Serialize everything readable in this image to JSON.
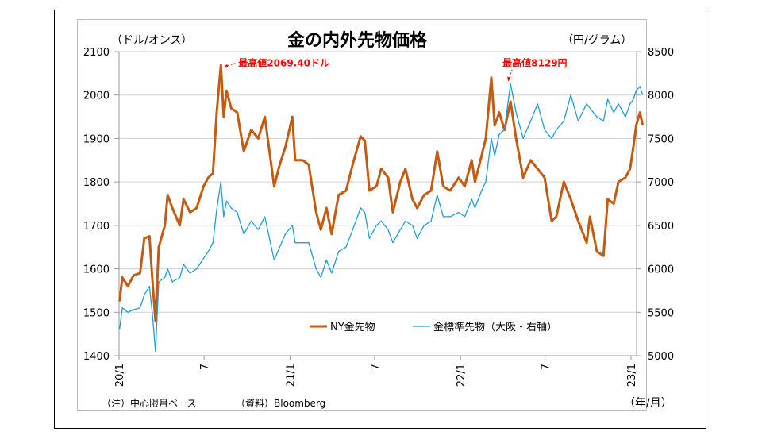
{
  "chart_data": {
    "type": "line",
    "title": "金の内外先物価格",
    "ylabel_left": "（ドル/オンス）",
    "ylabel_right": "（円/グラム）",
    "xlabel": "（年/月）",
    "ylim_left": [
      1400,
      2100
    ],
    "ylim_right": [
      5000,
      8500
    ],
    "yticks_left": [
      "2100",
      "2000",
      "1900",
      "1800",
      "1700",
      "1600",
      "1500",
      "1400"
    ],
    "yticks_right": [
      "8500",
      "8000",
      "7500",
      "7000",
      "6500",
      "6000",
      "5500",
      "5000"
    ],
    "xticks": [
      {
        "date": "2020-01-01",
        "label": "20/1"
      },
      {
        "date": "2020-07-01",
        "label": "7"
      },
      {
        "date": "2021-01-01",
        "label": "21/1"
      },
      {
        "date": "2021-07-01",
        "label": "7"
      },
      {
        "date": "2022-01-01",
        "label": "22/1"
      },
      {
        "date": "2022-07-01",
        "label": "7"
      },
      {
        "date": "2023-01-01",
        "label": "23/1"
      }
    ],
    "grid": true,
    "legend_position": "bottom-center",
    "series": [
      {
        "name": "NY金先物",
        "axis": "left",
        "color": "#c55a11",
        "points": [
          [
            "2020-01-02",
            1525
          ],
          [
            "2020-01-08",
            1580
          ],
          [
            "2020-01-20",
            1560
          ],
          [
            "2020-02-01",
            1585
          ],
          [
            "2020-02-15",
            1590
          ],
          [
            "2020-02-24",
            1670
          ],
          [
            "2020-03-06",
            1675
          ],
          [
            "2020-03-12",
            1580
          ],
          [
            "2020-03-19",
            1480
          ],
          [
            "2020-03-26",
            1650
          ],
          [
            "2020-04-08",
            1700
          ],
          [
            "2020-04-14",
            1770
          ],
          [
            "2020-04-24",
            1740
          ],
          [
            "2020-05-10",
            1700
          ],
          [
            "2020-05-18",
            1760
          ],
          [
            "2020-06-01",
            1730
          ],
          [
            "2020-06-15",
            1740
          ],
          [
            "2020-06-30",
            1790
          ],
          [
            "2020-07-10",
            1810
          ],
          [
            "2020-07-20",
            1820
          ],
          [
            "2020-07-28",
            1960
          ],
          [
            "2020-08-06",
            2069.4
          ],
          [
            "2020-08-12",
            1950
          ],
          [
            "2020-08-18",
            2010
          ],
          [
            "2020-08-28",
            1970
          ],
          [
            "2020-09-10",
            1960
          ],
          [
            "2020-09-24",
            1870
          ],
          [
            "2020-10-10",
            1920
          ],
          [
            "2020-10-25",
            1900
          ],
          [
            "2020-11-08",
            1950
          ],
          [
            "2020-11-28",
            1790
          ],
          [
            "2020-12-10",
            1840
          ],
          [
            "2020-12-22",
            1880
          ],
          [
            "2021-01-06",
            1950
          ],
          [
            "2021-01-12",
            1850
          ],
          [
            "2021-01-28",
            1850
          ],
          [
            "2021-02-10",
            1840
          ],
          [
            "2021-02-26",
            1730
          ],
          [
            "2021-03-08",
            1690
          ],
          [
            "2021-03-20",
            1740
          ],
          [
            "2021-03-31",
            1680
          ],
          [
            "2021-04-15",
            1770
          ],
          [
            "2021-05-01",
            1780
          ],
          [
            "2021-05-15",
            1840
          ],
          [
            "2021-06-01",
            1905
          ],
          [
            "2021-06-10",
            1895
          ],
          [
            "2021-06-20",
            1780
          ],
          [
            "2021-07-05",
            1790
          ],
          [
            "2021-07-15",
            1830
          ],
          [
            "2021-07-30",
            1810
          ],
          [
            "2021-08-09",
            1730
          ],
          [
            "2021-08-25",
            1800
          ],
          [
            "2021-09-05",
            1830
          ],
          [
            "2021-09-20",
            1760
          ],
          [
            "2021-09-30",
            1740
          ],
          [
            "2021-10-15",
            1770
          ],
          [
            "2021-10-30",
            1780
          ],
          [
            "2021-11-12",
            1870
          ],
          [
            "2021-11-25",
            1790
          ],
          [
            "2021-12-10",
            1780
          ],
          [
            "2021-12-28",
            1810
          ],
          [
            "2022-01-10",
            1790
          ],
          [
            "2022-01-25",
            1850
          ],
          [
            "2022-02-01",
            1800
          ],
          [
            "2022-02-15",
            1860
          ],
          [
            "2022-02-24",
            1900
          ],
          [
            "2022-03-08",
            2040
          ],
          [
            "2022-03-15",
            1930
          ],
          [
            "2022-03-25",
            1960
          ],
          [
            "2022-04-05",
            1920
          ],
          [
            "2022-04-18",
            1985
          ],
          [
            "2022-04-30",
            1900
          ],
          [
            "2022-05-15",
            1810
          ],
          [
            "2022-05-31",
            1850
          ],
          [
            "2022-06-15",
            1830
          ],
          [
            "2022-06-30",
            1810
          ],
          [
            "2022-07-15",
            1710
          ],
          [
            "2022-07-25",
            1720
          ],
          [
            "2022-08-10",
            1800
          ],
          [
            "2022-08-25",
            1760
          ],
          [
            "2022-09-10",
            1710
          ],
          [
            "2022-09-28",
            1660
          ],
          [
            "2022-10-05",
            1720
          ],
          [
            "2022-10-20",
            1640
          ],
          [
            "2022-11-03",
            1630
          ],
          [
            "2022-11-12",
            1760
          ],
          [
            "2022-11-25",
            1750
          ],
          [
            "2022-12-05",
            1800
          ],
          [
            "2022-12-20",
            1810
          ],
          [
            "2022-12-30",
            1830
          ],
          [
            "2023-01-06",
            1880
          ],
          [
            "2023-01-12",
            1930
          ],
          [
            "2023-01-20",
            1960
          ],
          [
            "2023-01-26",
            1930
          ]
        ]
      },
      {
        "name": "金標準先物（大阪・右軸）",
        "axis": "right",
        "color": "#1e9cd7",
        "points": [
          [
            "2020-01-02",
            5300
          ],
          [
            "2020-01-08",
            5550
          ],
          [
            "2020-01-20",
            5500
          ],
          [
            "2020-02-01",
            5530
          ],
          [
            "2020-02-15",
            5550
          ],
          [
            "2020-02-24",
            5700
          ],
          [
            "2020-03-06",
            5800
          ],
          [
            "2020-03-12",
            5500
          ],
          [
            "2020-03-19",
            5050
          ],
          [
            "2020-03-26",
            5850
          ],
          [
            "2020-04-08",
            5900
          ],
          [
            "2020-04-14",
            6000
          ],
          [
            "2020-04-24",
            5850
          ],
          [
            "2020-05-10",
            5900
          ],
          [
            "2020-05-18",
            6050
          ],
          [
            "2020-06-01",
            5950
          ],
          [
            "2020-06-15",
            6000
          ],
          [
            "2020-06-30",
            6120
          ],
          [
            "2020-07-10",
            6200
          ],
          [
            "2020-07-20",
            6300
          ],
          [
            "2020-07-28",
            6680
          ],
          [
            "2020-08-06",
            7000
          ],
          [
            "2020-08-12",
            6600
          ],
          [
            "2020-08-18",
            6780
          ],
          [
            "2020-08-28",
            6700
          ],
          [
            "2020-09-10",
            6650
          ],
          [
            "2020-09-24",
            6400
          ],
          [
            "2020-10-10",
            6550
          ],
          [
            "2020-10-25",
            6450
          ],
          [
            "2020-11-08",
            6600
          ],
          [
            "2020-11-28",
            6100
          ],
          [
            "2020-12-10",
            6250
          ],
          [
            "2020-12-22",
            6400
          ],
          [
            "2021-01-06",
            6500
          ],
          [
            "2021-01-12",
            6300
          ],
          [
            "2021-01-28",
            6300
          ],
          [
            "2021-02-10",
            6300
          ],
          [
            "2021-02-26",
            6000
          ],
          [
            "2021-03-08",
            5900
          ],
          [
            "2021-03-20",
            6100
          ],
          [
            "2021-03-31",
            5950
          ],
          [
            "2021-04-15",
            6200
          ],
          [
            "2021-05-01",
            6250
          ],
          [
            "2021-05-15",
            6450
          ],
          [
            "2021-06-01",
            6700
          ],
          [
            "2021-06-10",
            6650
          ],
          [
            "2021-06-20",
            6350
          ],
          [
            "2021-07-05",
            6500
          ],
          [
            "2021-07-15",
            6550
          ],
          [
            "2021-07-30",
            6450
          ],
          [
            "2021-08-09",
            6300
          ],
          [
            "2021-08-25",
            6450
          ],
          [
            "2021-09-05",
            6550
          ],
          [
            "2021-09-20",
            6500
          ],
          [
            "2021-09-30",
            6350
          ],
          [
            "2021-10-15",
            6500
          ],
          [
            "2021-10-30",
            6550
          ],
          [
            "2021-11-12",
            6850
          ],
          [
            "2021-11-25",
            6600
          ],
          [
            "2021-12-10",
            6600
          ],
          [
            "2021-12-28",
            6650
          ],
          [
            "2022-01-10",
            6600
          ],
          [
            "2022-01-25",
            6800
          ],
          [
            "2022-02-01",
            6700
          ],
          [
            "2022-02-15",
            6900
          ],
          [
            "2022-02-24",
            7000
          ],
          [
            "2022-03-08",
            7500
          ],
          [
            "2022-03-15",
            7300
          ],
          [
            "2022-03-25",
            7550
          ],
          [
            "2022-04-05",
            7600
          ],
          [
            "2022-04-18",
            8129
          ],
          [
            "2022-04-30",
            7800
          ],
          [
            "2022-05-15",
            7500
          ],
          [
            "2022-05-31",
            7700
          ],
          [
            "2022-06-15",
            7900
          ],
          [
            "2022-06-30",
            7600
          ],
          [
            "2022-07-15",
            7500
          ],
          [
            "2022-07-25",
            7600
          ],
          [
            "2022-08-10",
            7700
          ],
          [
            "2022-08-25",
            8000
          ],
          [
            "2022-09-10",
            7700
          ],
          [
            "2022-09-28",
            7900
          ],
          [
            "2022-10-05",
            7850
          ],
          [
            "2022-10-20",
            7750
          ],
          [
            "2022-11-03",
            7700
          ],
          [
            "2022-11-12",
            7950
          ],
          [
            "2022-11-25",
            7800
          ],
          [
            "2022-12-05",
            7900
          ],
          [
            "2022-12-20",
            7750
          ],
          [
            "2022-12-30",
            7900
          ],
          [
            "2023-01-06",
            7950
          ],
          [
            "2023-01-12",
            8050
          ],
          [
            "2023-01-20",
            8100
          ],
          [
            "2023-01-26",
            8000
          ]
        ]
      }
    ],
    "annotations": [
      {
        "text": "最高値2069.40ドル",
        "date": "2020-08-06",
        "value": 2069.4,
        "axis": "left",
        "color": "#ff0000"
      },
      {
        "text": "最高値8129円",
        "date": "2022-04-18",
        "value": 8129,
        "axis": "right",
        "color": "#ff0000"
      }
    ],
    "notes": {
      "note": "（注）中心限月ベース",
      "source": "（資料）Bloomberg"
    }
  }
}
